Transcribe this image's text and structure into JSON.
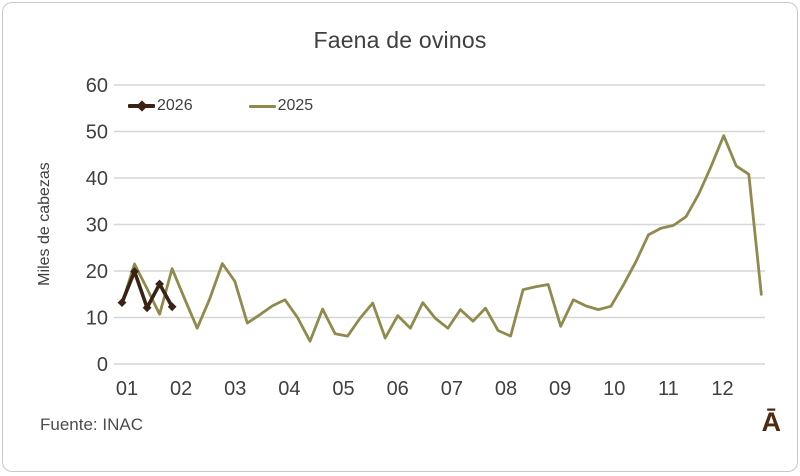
{
  "window": {
    "background": "#ffffff",
    "border_color": "#c9c9c9"
  },
  "header": {
    "title": "Faena de ovinos"
  },
  "footer": {
    "source_note": "Fuente: INAC",
    "watermark_glyph": "Ā"
  },
  "colors": {
    "series_2026": "#3b2314",
    "series_2025": "#8f8a4d",
    "gridline": "#d6d6d6",
    "tick_text": "#404040",
    "title_text": "#3f3f3f"
  },
  "chart_data": {
    "type": "line",
    "title": "Faena de ovinos",
    "xlabel": "",
    "ylabel": "Miles de cabezas",
    "ylim": [
      0,
      60
    ],
    "y_ticks": [
      0,
      10,
      20,
      30,
      40,
      50,
      60
    ],
    "x_tick_labels": [
      "01",
      "02",
      "03",
      "04",
      "05",
      "06",
      "07",
      "08",
      "09",
      "10",
      "11",
      "12"
    ],
    "x_unit": "week of year",
    "grid": "horizontal-only",
    "legend_position": "top-left-inside",
    "series": [
      {
        "name": "2025",
        "color": "#8f8a4d",
        "marker": "none",
        "line_width": 2.8,
        "values": [
          13.0,
          21.5,
          16.2,
          10.7,
          20.5,
          14.0,
          7.7,
          14.0,
          21.6,
          17.8,
          8.8,
          10.6,
          12.5,
          13.8,
          10.0,
          4.9,
          11.8,
          6.5,
          6.0,
          9.9,
          13.1,
          5.6,
          10.4,
          7.7,
          13.2,
          9.8,
          7.7,
          11.7,
          9.2,
          12.0,
          7.2,
          6.0,
          16.0,
          16.6,
          17.1,
          8.1,
          13.8,
          12.5,
          11.7,
          12.4,
          17.0,
          22.0,
          27.8,
          29.2,
          29.8,
          31.7,
          36.5,
          42.5,
          49.1,
          42.6,
          40.8,
          15.0
        ]
      },
      {
        "name": "2026",
        "color": "#3b2314",
        "marker": "diamond",
        "line_width": 3.6,
        "values": [
          13.2,
          19.9,
          12.1,
          17.2,
          12.3
        ]
      }
    ]
  },
  "legend": {
    "item_2026": "2026",
    "item_2025": "2025"
  }
}
